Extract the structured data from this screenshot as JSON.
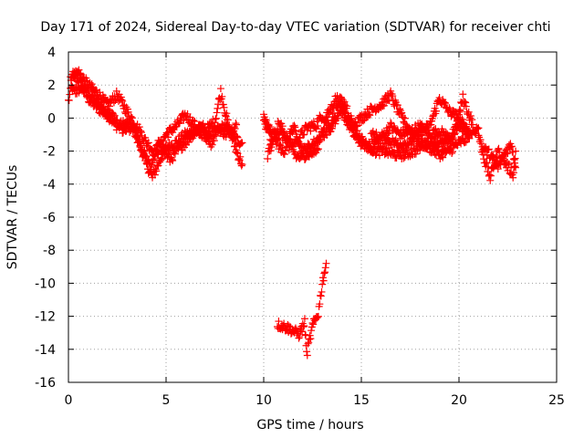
{
  "chart_data": {
    "type": "scatter",
    "title": "Day 171 of 2024, Sidereal Day-to-day VTEC variation (SDTVAR) for receiver chti",
    "xlabel": "GPS time / hours",
    "ylabel": "SDTVAR / TECUs",
    "xlim": [
      0,
      25
    ],
    "ylim": [
      -16,
      4
    ],
    "xticks": [
      "0",
      "5",
      "10",
      "15",
      "20",
      "25"
    ],
    "yticks": [
      "4",
      "2",
      "0",
      "-2",
      "-4",
      "-6",
      "-8",
      "-10",
      "-12",
      "-14",
      "-16"
    ],
    "grid": true,
    "marker": "+",
    "series": [
      {
        "name": "SDTVAR",
        "color": "#ff0000",
        "tracks": [
          [
            [
              0.0,
              1.0
            ],
            [
              0.3,
              2.6
            ],
            [
              0.6,
              2.2
            ],
            [
              1.0,
              1.2
            ],
            [
              1.5,
              0.6
            ],
            [
              2.0,
              0.2
            ],
            [
              2.5,
              -0.5
            ],
            [
              3.0,
              -0.3
            ],
            [
              3.5,
              -1.0
            ],
            [
              4.0,
              -2.8
            ],
            [
              4.3,
              -3.6
            ],
            [
              4.7,
              -2.5
            ],
            [
              5.0,
              -1.8
            ],
            [
              5.5,
              -1.5
            ],
            [
              6.0,
              -1.0
            ],
            [
              6.5,
              -0.8
            ],
            [
              7.0,
              -1.2
            ],
            [
              7.5,
              -0.8
            ],
            [
              8.0,
              -0.5
            ],
            [
              8.5,
              -1.2
            ],
            [
              8.9,
              -1.5
            ]
          ],
          [
            [
              0.1,
              2.5
            ],
            [
              0.5,
              2.8
            ],
            [
              1.0,
              2.0
            ],
            [
              1.5,
              1.5
            ],
            [
              2.0,
              0.8
            ],
            [
              2.5,
              1.4
            ],
            [
              3.0,
              0.4
            ],
            [
              3.5,
              -0.5
            ],
            [
              4.0,
              -1.5
            ],
            [
              4.5,
              -2.2
            ],
            [
              5.0,
              -1.0
            ],
            [
              5.5,
              -0.5
            ],
            [
              6.0,
              0.2
            ],
            [
              6.5,
              -0.5
            ],
            [
              7.0,
              -0.8
            ],
            [
              7.5,
              -0.2
            ],
            [
              7.8,
              1.6
            ],
            [
              8.2,
              -0.5
            ],
            [
              8.6,
              -2.0
            ],
            [
              8.9,
              -2.8
            ]
          ],
          [
            [
              0.2,
              1.6
            ],
            [
              0.7,
              1.8
            ],
            [
              1.2,
              1.4
            ],
            [
              1.8,
              0.5
            ],
            [
              2.3,
              0.0
            ],
            [
              2.8,
              -0.8
            ],
            [
              3.3,
              -0.6
            ],
            [
              3.8,
              -2.0
            ],
            [
              4.2,
              -3.0
            ],
            [
              4.6,
              -1.5
            ],
            [
              5.2,
              -2.5
            ],
            [
              5.7,
              -1.8
            ],
            [
              6.2,
              -1.2
            ],
            [
              6.8,
              -0.3
            ],
            [
              7.3,
              -1.5
            ],
            [
              7.7,
              -0.6
            ],
            [
              8.1,
              -1.0
            ],
            [
              8.6,
              -0.4
            ]
          ],
          [
            [
              10.0,
              0.5
            ],
            [
              10.4,
              -1.5
            ],
            [
              10.8,
              -0.2
            ],
            [
              11.3,
              -1.8
            ],
            [
              11.8,
              -1.2
            ],
            [
              12.2,
              -0.6
            ],
            [
              12.7,
              -0.4
            ],
            [
              13.0,
              0.2
            ],
            [
              13.4,
              -0.6
            ],
            [
              13.8,
              0.8
            ],
            [
              14.2,
              0.0
            ],
            [
              14.6,
              -1.0
            ],
            [
              15.0,
              -1.5
            ],
            [
              15.5,
              -1.8
            ],
            [
              16.0,
              -1.2
            ],
            [
              16.5,
              -0.5
            ],
            [
              17.0,
              -1.0
            ],
            [
              17.5,
              -0.8
            ],
            [
              18.0,
              -0.5
            ],
            [
              18.5,
              -1.0
            ],
            [
              19.0,
              -0.8
            ],
            [
              19.5,
              -1.2
            ],
            [
              20.0,
              -0.5
            ],
            [
              20.5,
              -0.8
            ]
          ],
          [
            [
              10.0,
              -0.3
            ],
            [
              10.5,
              -1.0
            ],
            [
              11.0,
              -2.2
            ],
            [
              11.5,
              -0.5
            ],
            [
              12.0,
              -2.0
            ],
            [
              12.5,
              -1.6
            ],
            [
              13.0,
              -1.0
            ],
            [
              13.5,
              -0.5
            ],
            [
              14.0,
              0.5
            ],
            [
              14.5,
              -0.5
            ],
            [
              15.0,
              0.0
            ],
            [
              15.5,
              0.5
            ],
            [
              16.0,
              0.8
            ],
            [
              16.5,
              1.4
            ],
            [
              17.0,
              0.2
            ],
            [
              17.5,
              -0.8
            ],
            [
              18.0,
              -1.4
            ],
            [
              18.5,
              -1.8
            ],
            [
              19.0,
              -2.2
            ],
            [
              19.5,
              -2.0
            ],
            [
              20.0,
              -1.5
            ],
            [
              20.5,
              -1.2
            ]
          ],
          [
            [
              10.2,
              -2.2
            ],
            [
              10.7,
              -0.8
            ],
            [
              11.2,
              -1.2
            ],
            [
              11.7,
              -2.4
            ],
            [
              12.2,
              -2.2
            ],
            [
              12.7,
              -2.0
            ],
            [
              13.2,
              0.0
            ],
            [
              13.7,
              1.2
            ],
            [
              14.2,
              0.8
            ],
            [
              14.7,
              -0.8
            ],
            [
              15.2,
              -1.6
            ],
            [
              15.7,
              -2.0
            ],
            [
              16.2,
              -2.0
            ],
            [
              16.7,
              -2.2
            ],
            [
              17.2,
              -2.2
            ],
            [
              17.7,
              -2.0
            ],
            [
              18.2,
              -1.6
            ],
            [
              18.7,
              -1.4
            ],
            [
              19.2,
              -1.6
            ],
            [
              19.7,
              -1.2
            ],
            [
              20.2,
              1.2
            ],
            [
              20.7,
              -0.4
            ]
          ],
          [
            [
              15.5,
              -1.0
            ],
            [
              16.0,
              -1.2
            ],
            [
              16.5,
              -1.4
            ],
            [
              17.0,
              -1.6
            ],
            [
              17.5,
              -1.5
            ],
            [
              18.0,
              -0.8
            ],
            [
              18.5,
              -0.5
            ],
            [
              19.0,
              1.2
            ],
            [
              19.5,
              0.4
            ],
            [
              20.0,
              0.0
            ],
            [
              20.5,
              -1.0
            ],
            [
              21.0,
              -0.6
            ]
          ],
          [
            [
              21.0,
              -1.0
            ],
            [
              21.3,
              -2.5
            ],
            [
              21.6,
              -3.6
            ],
            [
              22.0,
              -2.0
            ],
            [
              22.4,
              -2.8
            ],
            [
              22.8,
              -3.4
            ],
            [
              22.9,
              -2.0
            ]
          ],
          [
            [
              21.2,
              -1.8
            ],
            [
              21.6,
              -2.2
            ],
            [
              22.0,
              -3.0
            ],
            [
              22.4,
              -2.0
            ],
            [
              22.7,
              -1.6
            ],
            [
              22.9,
              -3.0
            ]
          ],
          [
            [
              10.7,
              -12.5
            ],
            [
              11.0,
              -12.6
            ],
            [
              11.4,
              -12.8
            ],
            [
              11.8,
              -13.1
            ],
            [
              12.1,
              -12.4
            ],
            [
              12.2,
              -14.3
            ],
            [
              12.5,
              -12.6
            ],
            [
              12.8,
              -11.8
            ],
            [
              13.0,
              -10.0
            ],
            [
              13.2,
              -8.8
            ]
          ]
        ]
      }
    ]
  }
}
